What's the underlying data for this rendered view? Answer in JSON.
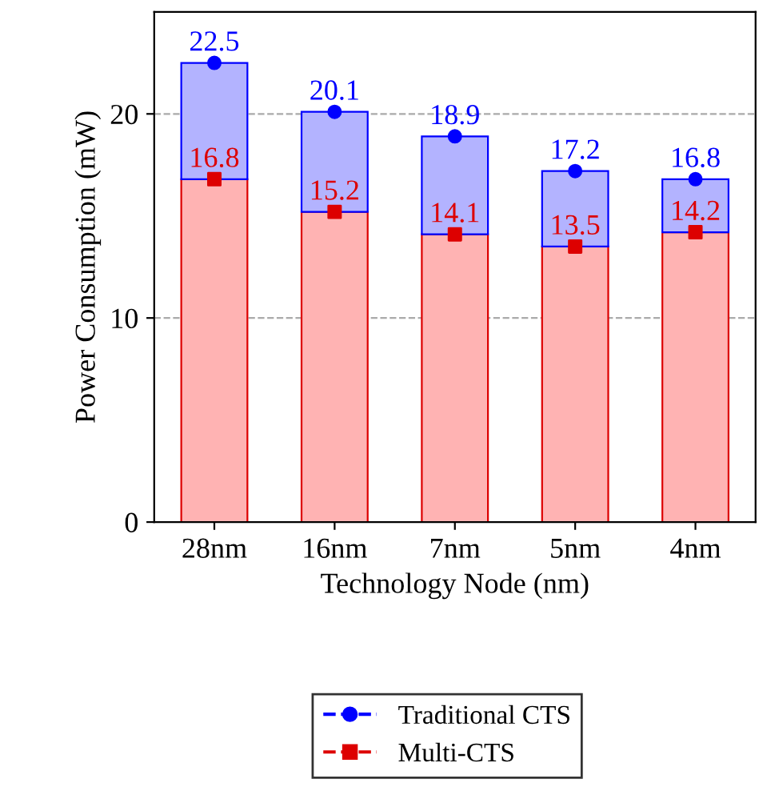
{
  "chart_data": {
    "type": "bar",
    "stacked": true,
    "xlabel": "Technology Node (nm)",
    "ylabel": "Power Consumption (mW)",
    "categories": [
      "28nm",
      "16nm",
      "7nm",
      "5nm",
      "4nm"
    ],
    "series": [
      {
        "color": "#ffb3b3",
        "values": [
          16.8,
          15.2,
          14.1,
          13.5,
          14.2
        ]
      },
      {
        "color": "#b3b3ff",
        "values": [
          5.7,
          4.9,
          4.8,
          3.7,
          2.6
        ]
      },
      {
        "type": "scatter",
        "name": "Traditional CTS",
        "color": "#0000ff",
        "marker": "circle",
        "x": [
          "28nm",
          "16nm",
          "7nm",
          "5nm",
          "4nm"
        ],
        "values": [
          22.5,
          20.1,
          18.9,
          17.2,
          16.8
        ],
        "value_labels": [
          "22.5",
          "20.1",
          "18.9",
          "17.2",
          "16.8"
        ]
      },
      {
        "type": "scatter",
        "name": "Multi-CTS",
        "color": "#dd0000",
        "marker": "square",
        "x": [
          "28nm",
          "16nm",
          "7nm",
          "5nm",
          "4nm"
        ],
        "values": [
          16.8,
          15.2,
          14.1,
          13.5,
          14.2
        ],
        "value_labels": [
          "16.8",
          "15.2",
          "14.1",
          "13.5",
          "14.2"
        ]
      }
    ],
    "ylim": [
      0,
      25
    ],
    "yticks": [
      0,
      10,
      20
    ],
    "grid": "y",
    "legend": "bottom",
    "line_style": "dashed"
  }
}
